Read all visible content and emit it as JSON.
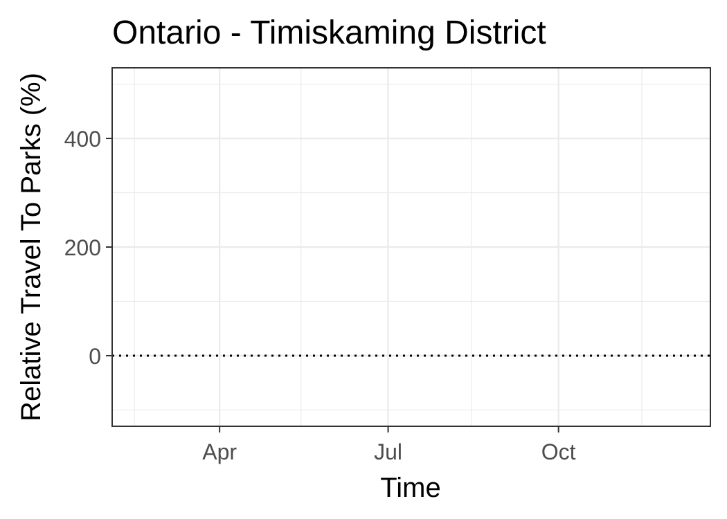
{
  "chart_data": {
    "type": "line",
    "title": "Ontario - Timiskaming District",
    "xlabel": "Time",
    "ylabel": "Relative Travel To Parks (%)",
    "x_tick_labels": [
      {
        "date": "2020-04-01",
        "label": "Apr"
      },
      {
        "date": "2020-07-01",
        "label": "Jul"
      },
      {
        "date": "2020-10-01",
        "label": "Oct"
      }
    ],
    "x_minor_dates": [
      "2020-02-15",
      "2020-05-15",
      "2020-08-15",
      "2020-11-15"
    ],
    "xlim": [
      "2020-02-03",
      "2020-12-22"
    ],
    "y_ticks": [
      0,
      200,
      400
    ],
    "y_minor_ticks": [
      -100,
      100,
      300,
      500
    ],
    "ylim": [
      -130,
      530
    ],
    "series": [],
    "reference_line": {
      "y": 0,
      "style": "dotted"
    },
    "grid": true,
    "legend": "none"
  }
}
